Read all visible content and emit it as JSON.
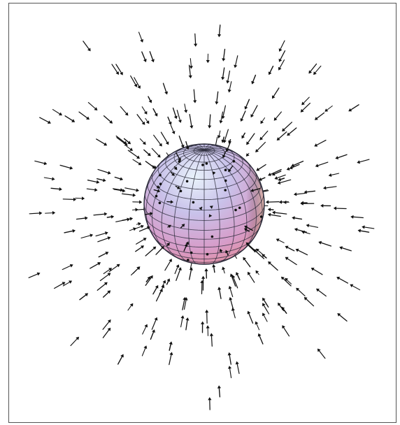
{
  "figure": {
    "description_kind": "3D vector field converging on a sphere",
    "colors": {
      "frame": "#555555",
      "arrow": "#111111",
      "grid": "#2b2b3a",
      "sphere_top": "#c9e3f2",
      "sphere_mid": "#c8b8e6",
      "sphere_bottom": "#e27aa0",
      "sphere_rim": "#f1d7a3"
    },
    "icons": [
      "arrow-icon",
      "sphere-icon"
    ]
  }
}
